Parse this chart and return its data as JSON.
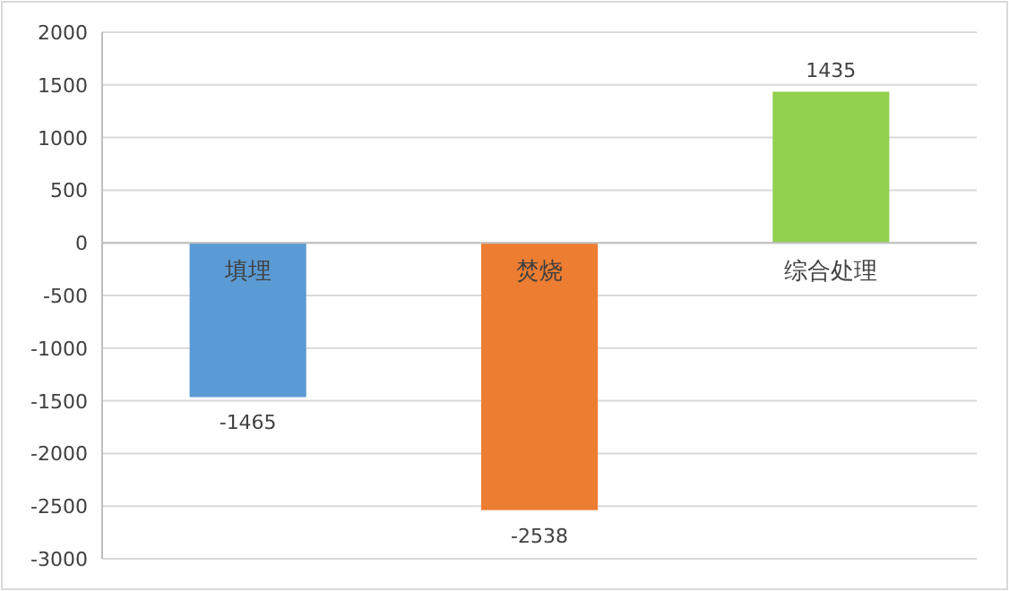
{
  "chart_data": {
    "type": "bar",
    "categories": [
      "填埋",
      "焚烧",
      "综合处理"
    ],
    "values": [
      -1465,
      -2538,
      1435
    ],
    "colors": [
      "#5b9bd5",
      "#ed7d31",
      "#92d050"
    ],
    "ylim": [
      -3000,
      2000
    ],
    "yticks": [
      -3000,
      -2500,
      -2000,
      -1500,
      -1000,
      -500,
      0,
      500,
      1000,
      1500,
      2000
    ],
    "grid": "y",
    "data_labels": true
  }
}
